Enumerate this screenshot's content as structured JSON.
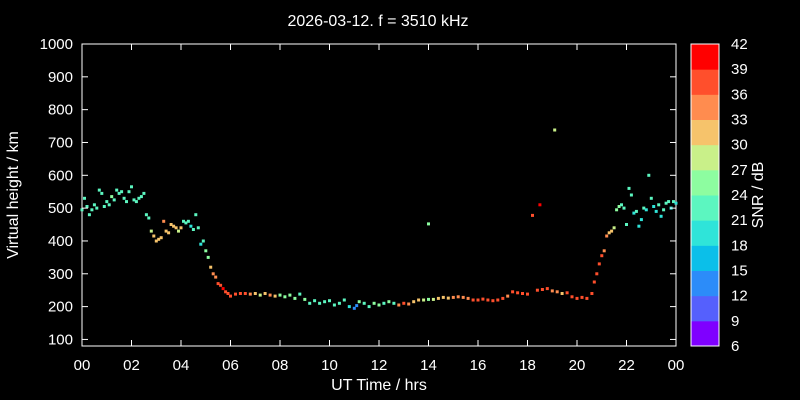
{
  "chart_data": {
    "type": "scatter",
    "title": "2026-03-12. f = 3510 kHz",
    "xlabel": "UT Time / hrs",
    "ylabel": "Virtual height / km",
    "colorbar_label": "SNR / dB",
    "xlim": [
      0,
      24
    ],
    "ylim": [
      80,
      1000
    ],
    "x_ticks": [
      "00",
      "02",
      "04",
      "06",
      "08",
      "10",
      "12",
      "14",
      "16",
      "18",
      "20",
      "22",
      "00"
    ],
    "y_ticks": [
      "100",
      "200",
      "300",
      "400",
      "500",
      "600",
      "700",
      "800",
      "900",
      "1000"
    ],
    "colorbar_ticks": [
      "6",
      "9",
      "12",
      "15",
      "18",
      "21",
      "24",
      "27",
      "30",
      "33",
      "36",
      "39",
      "42"
    ],
    "colorbar_colors": [
      "#7f00ff",
      "#5560fd",
      "#2c8cf9",
      "#0bbfe9",
      "#2fe4d9",
      "#5cf6c0",
      "#8dfda0",
      "#c9f089",
      "#f6c36b",
      "#ff8c4f",
      "#ff4f2c",
      "#ff0000"
    ],
    "grid": false,
    "points": [
      [
        0.0,
        495,
        22
      ],
      [
        0.1,
        530,
        22
      ],
      [
        0.2,
        505,
        21
      ],
      [
        0.3,
        480,
        21
      ],
      [
        0.4,
        495,
        22
      ],
      [
        0.5,
        510,
        23
      ],
      [
        0.6,
        500,
        22
      ],
      [
        0.7,
        555,
        22
      ],
      [
        0.8,
        545,
        23
      ],
      [
        0.9,
        505,
        21
      ],
      [
        1.0,
        520,
        23
      ],
      [
        1.1,
        510,
        22
      ],
      [
        1.2,
        535,
        24
      ],
      [
        1.3,
        525,
        22
      ],
      [
        1.4,
        555,
        23
      ],
      [
        1.5,
        545,
        22
      ],
      [
        1.6,
        550,
        22
      ],
      [
        1.7,
        530,
        23
      ],
      [
        1.8,
        520,
        22
      ],
      [
        1.9,
        550,
        23
      ],
      [
        2.0,
        565,
        22
      ],
      [
        2.1,
        525,
        21
      ],
      [
        2.2,
        520,
        23
      ],
      [
        2.3,
        530,
        22
      ],
      [
        2.4,
        535,
        22
      ],
      [
        2.5,
        545,
        23
      ],
      [
        2.6,
        480,
        23
      ],
      [
        2.7,
        470,
        22
      ],
      [
        2.8,
        430,
        28
      ],
      [
        2.9,
        415,
        30
      ],
      [
        3.0,
        400,
        31
      ],
      [
        3.1,
        405,
        30
      ],
      [
        3.2,
        410,
        32
      ],
      [
        3.3,
        460,
        34
      ],
      [
        3.4,
        430,
        31
      ],
      [
        3.5,
        425,
        30
      ],
      [
        3.6,
        450,
        30
      ],
      [
        3.7,
        445,
        31
      ],
      [
        3.8,
        440,
        30
      ],
      [
        3.9,
        430,
        29
      ],
      [
        4.0,
        440,
        30
      ],
      [
        4.1,
        460,
        22
      ],
      [
        4.2,
        455,
        21
      ],
      [
        4.3,
        460,
        22
      ],
      [
        4.4,
        445,
        20
      ],
      [
        4.5,
        435,
        21
      ],
      [
        4.6,
        480,
        23
      ],
      [
        4.7,
        440,
        22
      ],
      [
        4.8,
        390,
        20
      ],
      [
        4.9,
        400,
        21
      ],
      [
        5.0,
        370,
        24
      ],
      [
        5.1,
        350,
        26
      ],
      [
        5.2,
        320,
        31
      ],
      [
        5.3,
        300,
        33
      ],
      [
        5.4,
        290,
        34
      ],
      [
        5.5,
        270,
        36
      ],
      [
        5.6,
        265,
        38
      ],
      [
        5.7,
        255,
        39
      ],
      [
        5.8,
        245,
        38
      ],
      [
        5.9,
        240,
        38
      ],
      [
        6.0,
        232,
        37
      ],
      [
        6.2,
        238,
        36
      ],
      [
        6.4,
        240,
        37
      ],
      [
        6.6,
        240,
        36
      ],
      [
        6.8,
        238,
        34
      ],
      [
        7.0,
        240,
        30
      ],
      [
        7.2,
        235,
        28
      ],
      [
        7.4,
        240,
        32
      ],
      [
        7.6,
        235,
        33
      ],
      [
        7.8,
        232,
        30
      ],
      [
        8.0,
        235,
        26
      ],
      [
        8.2,
        230,
        25
      ],
      [
        8.4,
        235,
        26
      ],
      [
        8.6,
        225,
        24
      ],
      [
        8.8,
        238,
        22
      ],
      [
        9.0,
        222,
        24
      ],
      [
        9.2,
        210,
        22
      ],
      [
        9.4,
        218,
        23
      ],
      [
        9.6,
        210,
        22
      ],
      [
        9.8,
        215,
        21
      ],
      [
        10.0,
        218,
        23
      ],
      [
        10.2,
        205,
        22
      ],
      [
        10.4,
        210,
        22
      ],
      [
        10.6,
        220,
        21
      ],
      [
        10.8,
        200,
        20
      ],
      [
        11.0,
        195,
        12
      ],
      [
        11.1,
        203,
        14
      ],
      [
        11.2,
        215,
        24
      ],
      [
        11.4,
        210,
        22
      ],
      [
        11.6,
        200,
        21
      ],
      [
        11.8,
        210,
        24
      ],
      [
        12.0,
        205,
        24
      ],
      [
        12.2,
        210,
        22
      ],
      [
        12.4,
        215,
        24
      ],
      [
        12.6,
        210,
        23
      ],
      [
        12.8,
        205,
        35
      ],
      [
        13.0,
        210,
        36
      ],
      [
        13.2,
        208,
        35
      ],
      [
        13.4,
        215,
        32
      ],
      [
        13.6,
        220,
        30
      ],
      [
        13.8,
        220,
        28
      ],
      [
        14.0,
        452,
        24
      ],
      [
        14.0,
        222,
        26
      ],
      [
        14.2,
        222,
        27
      ],
      [
        14.4,
        225,
        30
      ],
      [
        14.6,
        228,
        31
      ],
      [
        14.8,
        226,
        32
      ],
      [
        15.0,
        228,
        33
      ],
      [
        15.2,
        230,
        33
      ],
      [
        15.4,
        228,
        34
      ],
      [
        15.6,
        225,
        34
      ],
      [
        15.8,
        220,
        36
      ],
      [
        16.0,
        220,
        37
      ],
      [
        16.2,
        223,
        37
      ],
      [
        16.4,
        220,
        36
      ],
      [
        16.6,
        218,
        38
      ],
      [
        16.8,
        220,
        37
      ],
      [
        17.0,
        225,
        36
      ],
      [
        17.2,
        232,
        35
      ],
      [
        17.4,
        245,
        36
      ],
      [
        17.6,
        242,
        37
      ],
      [
        17.8,
        240,
        36
      ],
      [
        18.0,
        238,
        38
      ],
      [
        18.2,
        478,
        36
      ],
      [
        18.4,
        250,
        38
      ],
      [
        18.5,
        510,
        39
      ],
      [
        18.6,
        252,
        36
      ],
      [
        18.8,
        255,
        36
      ],
      [
        19.0,
        248,
        34
      ],
      [
        19.1,
        738,
        27
      ],
      [
        19.2,
        245,
        33
      ],
      [
        19.4,
        240,
        32
      ],
      [
        19.6,
        242,
        36
      ],
      [
        19.8,
        230,
        36
      ],
      [
        20.0,
        225,
        37
      ],
      [
        20.2,
        228,
        36
      ],
      [
        20.4,
        225,
        38
      ],
      [
        20.6,
        240,
        38
      ],
      [
        20.7,
        275,
        38
      ],
      [
        20.8,
        300,
        38
      ],
      [
        20.9,
        330,
        36
      ],
      [
        21.0,
        355,
        36
      ],
      [
        21.1,
        370,
        35
      ],
      [
        21.2,
        415,
        33
      ],
      [
        21.3,
        425,
        31
      ],
      [
        21.4,
        430,
        30
      ],
      [
        21.5,
        440,
        27
      ],
      [
        21.6,
        495,
        24
      ],
      [
        21.7,
        505,
        24
      ],
      [
        21.8,
        510,
        23
      ],
      [
        21.9,
        500,
        22
      ],
      [
        22.0,
        450,
        21
      ],
      [
        22.1,
        560,
        22
      ],
      [
        22.2,
        540,
        21
      ],
      [
        22.3,
        485,
        20
      ],
      [
        22.4,
        490,
        21
      ],
      [
        22.5,
        445,
        19
      ],
      [
        22.6,
        465,
        20
      ],
      [
        22.7,
        500,
        21
      ],
      [
        22.8,
        495,
        20
      ],
      [
        22.9,
        600,
        22
      ],
      [
        23.0,
        530,
        21
      ],
      [
        23.1,
        505,
        20
      ],
      [
        23.2,
        490,
        19
      ],
      [
        23.3,
        510,
        21
      ],
      [
        23.4,
        475,
        20
      ],
      [
        23.5,
        495,
        21
      ],
      [
        23.6,
        515,
        22
      ],
      [
        23.7,
        520,
        21
      ],
      [
        23.8,
        500,
        20
      ],
      [
        23.9,
        520,
        21
      ],
      [
        24.0,
        515,
        20
      ]
    ]
  }
}
